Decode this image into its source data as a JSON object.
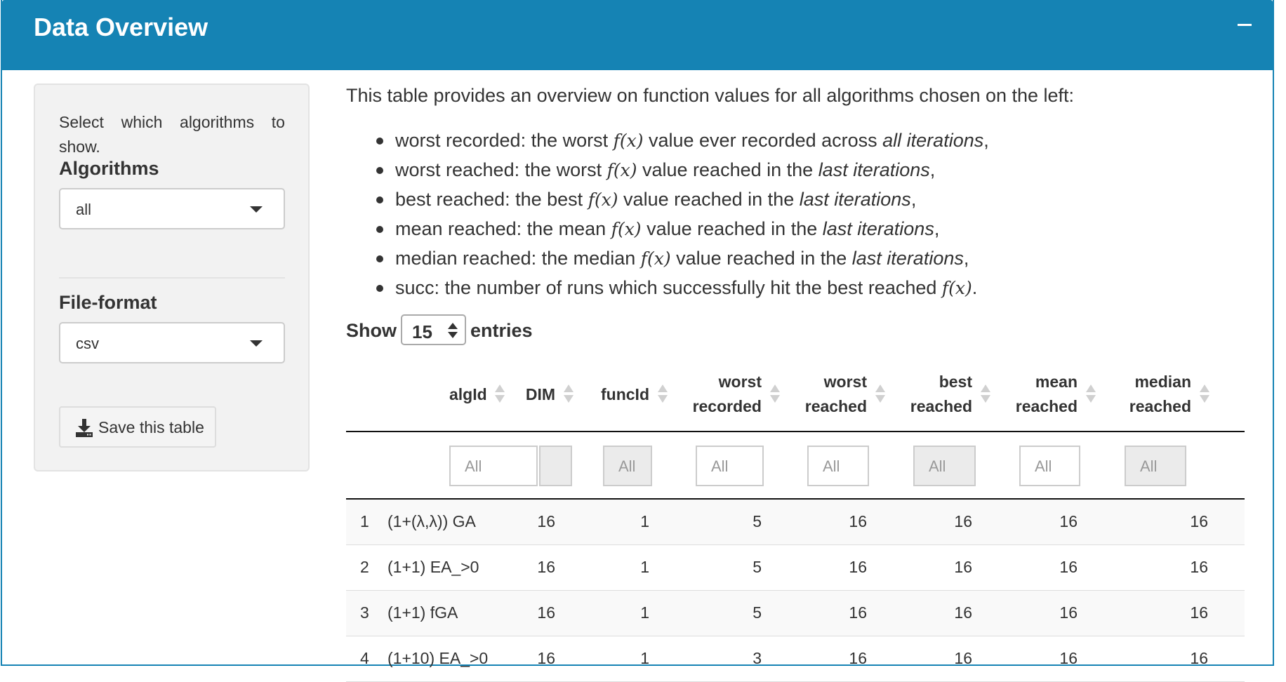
{
  "box": {
    "title": "Data Overview"
  },
  "sidebar": {
    "help_words": [
      "Select",
      "which",
      "algorithms",
      "to"
    ],
    "help_last": "show.",
    "algorithms_label": "Algorithms",
    "algorithms_value": "all",
    "fileformat_label": "File-format",
    "fileformat_value": "csv",
    "save_label": "Save this table"
  },
  "main": {
    "intro": "This table provides an overview on function values for all algorithms chosen on the left:",
    "math_fx": "f(x)",
    "bullets": [
      {
        "pre": "worst recorded: the worst ",
        "mid": " value ever recorded across ",
        "em": "all iterations",
        "post": ","
      },
      {
        "pre": "worst reached: the worst ",
        "mid": " value reached in the ",
        "em": "last iterations",
        "post": ","
      },
      {
        "pre": "best reached: the best ",
        "mid": " value reached in the ",
        "em": "last iterations",
        "post": ","
      },
      {
        "pre": "mean reached: the mean ",
        "mid": " value reached in the ",
        "em": "last iterations",
        "post": ","
      },
      {
        "pre": "median reached: the median ",
        "mid": " value reached in the ",
        "em": "last iterations",
        "post": ","
      },
      {
        "pre": "succ: the number of runs which successfully hit the best reached ",
        "post": "."
      }
    ],
    "show_label": "Show",
    "entries_value": "15",
    "entries_label": "entries"
  },
  "table": {
    "headers": [
      {
        "l1": "algId",
        "l2": ""
      },
      {
        "l1": "DIM",
        "l2": ""
      },
      {
        "l1": "funcId",
        "l2": ""
      },
      {
        "l1": "worst",
        "l2": "recorded"
      },
      {
        "l1": "worst",
        "l2": "reached"
      },
      {
        "l1": "best",
        "l2": "reached"
      },
      {
        "l1": "mean",
        "l2": "reached"
      },
      {
        "l1": "median",
        "l2": "reached"
      }
    ],
    "filter_placeholder": "All",
    "rows": [
      {
        "idx": "1",
        "algId": "(1+(λ,λ)) GA",
        "DIM": "16",
        "funcId": "1",
        "worst_recorded": "5",
        "worst_reached": "16",
        "best_reached": "16",
        "mean_reached": "16",
        "median_reached": "16"
      },
      {
        "idx": "2",
        "algId": "(1+1) EA_>0",
        "DIM": "16",
        "funcId": "1",
        "worst_recorded": "5",
        "worst_reached": "16",
        "best_reached": "16",
        "mean_reached": "16",
        "median_reached": "16"
      },
      {
        "idx": "3",
        "algId": "(1+1) fGA",
        "DIM": "16",
        "funcId": "1",
        "worst_recorded": "5",
        "worst_reached": "16",
        "best_reached": "16",
        "mean_reached": "16",
        "median_reached": "16"
      },
      {
        "idx": "4",
        "algId": "(1+10) EA_>0",
        "DIM": "16",
        "funcId": "1",
        "worst_recorded": "3",
        "worst_reached": "16",
        "best_reached": "16",
        "mean_reached": "16",
        "median_reached": "16"
      }
    ]
  }
}
